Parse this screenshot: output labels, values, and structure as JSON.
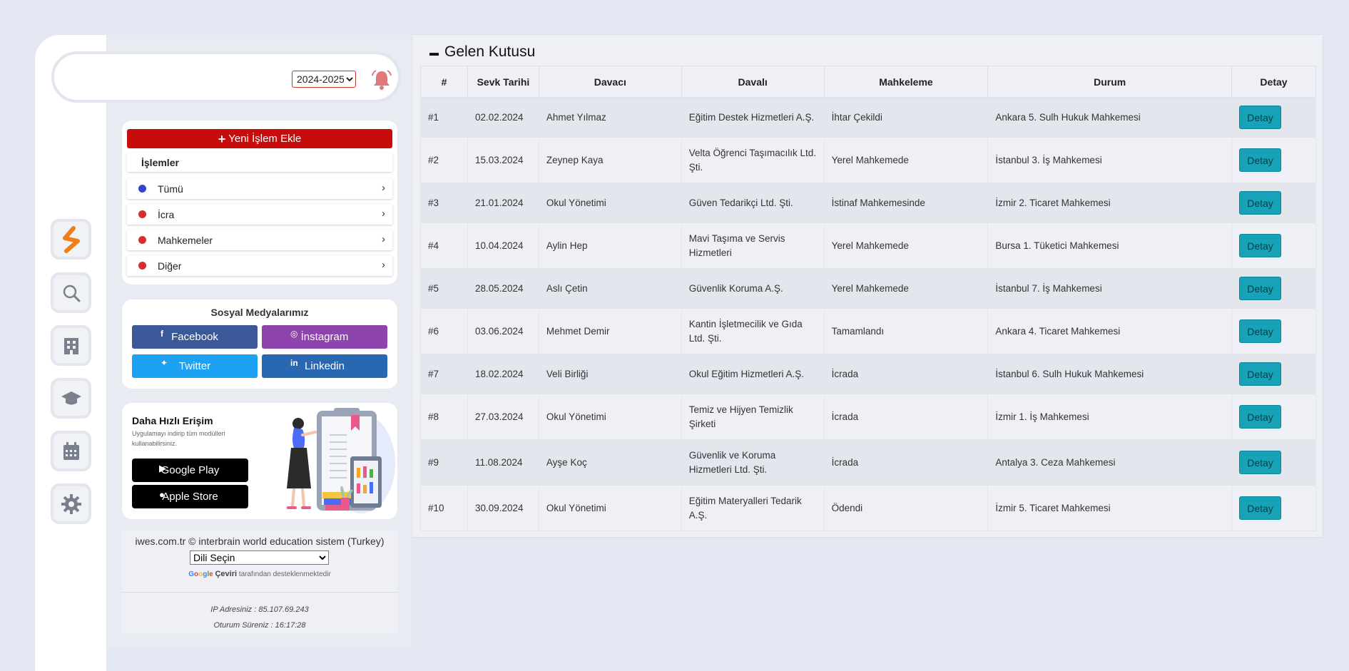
{
  "topbar": {
    "year_select": "2024-2025"
  },
  "rail": {
    "items": [
      {
        "name": "logo-icon"
      },
      {
        "name": "search-icon"
      },
      {
        "name": "building-icon"
      },
      {
        "name": "graduation-cap-icon"
      },
      {
        "name": "calendar-icon"
      },
      {
        "name": "gear-icon"
      }
    ]
  },
  "operations": {
    "new_button": "Yeni İşlem Ekle",
    "heading": "İşlemler",
    "items": [
      {
        "label": "Tümü",
        "dot_color": "#3344cc"
      },
      {
        "label": "İcra",
        "dot_color": "#d32f2f"
      },
      {
        "label": "Mahkemeler",
        "dot_color": "#d32f2f"
      },
      {
        "label": "Diğer",
        "dot_color": "#d32f2f"
      }
    ]
  },
  "social": {
    "title": "Sosyal Medyalarımız",
    "buttons": [
      {
        "label": "Facebook",
        "icon": "f",
        "color": "#3b5998"
      },
      {
        "label": "İnstagram",
        "icon": "◎",
        "color": "#8e44ad"
      },
      {
        "label": "Twitter",
        "icon": "🐦",
        "color": "#1da1f2"
      },
      {
        "label": "Linkedin",
        "icon": "in",
        "color": "#2867b2"
      }
    ]
  },
  "quick_access": {
    "title": "Daha Hızlı Erişim",
    "description": "Uygulamayı indirip tüm modülleri kullanabilirsiniz.",
    "google_play": "Google Play",
    "apple_store": "Apple Store"
  },
  "footer": {
    "copyright": "iwes.com.tr © interbrain world education sistem (Turkey)",
    "language_select": "Dili Seçin",
    "powered_google": "Google",
    "powered_translate": "Çeviri",
    "powered_rest": "tarafından desteklenmektedir",
    "ip": "IP Adresiniz : 85.107.69.243",
    "session": "Oturum Süreniz : 16:17:28"
  },
  "inbox": {
    "title": "Gelen Kutusu",
    "columns": [
      "#",
      "Sevk Tarihi",
      "Davacı",
      "Davalı",
      "Mahkeleme",
      "Durum",
      "Detay"
    ],
    "detail_button": "Detay",
    "rows": [
      {
        "no": "#1",
        "date": "02.02.2024",
        "plaintiff": "Ahmet Yılmaz",
        "defendant": "Eğitim Destek Hizmetleri A.Ş.",
        "court": "İhtar Çekildi",
        "status": "Ankara 5. Sulh Hukuk Mahkemesi"
      },
      {
        "no": "#2",
        "date": "15.03.2024",
        "plaintiff": "Zeynep Kaya",
        "defendant": "Velta Öğrenci Taşımacılık Ltd. Şti.",
        "court": "Yerel Mahkemede",
        "status": "İstanbul 3. İş Mahkemesi"
      },
      {
        "no": "#3",
        "date": "21.01.2024",
        "plaintiff": "Okul Yönetimi",
        "defendant": "Güven Tedarikçi Ltd. Şti.",
        "court": "İstinaf Mahkemesinde",
        "status": "İzmir 2. Ticaret Mahkemesi"
      },
      {
        "no": "#4",
        "date": "10.04.2024",
        "plaintiff": "Aylin Hep",
        "defendant": "Mavi Taşıma ve Servis Hizmetleri",
        "court": "Yerel Mahkemede",
        "status": "Bursa 1. Tüketici Mahkemesi"
      },
      {
        "no": "#5",
        "date": "28.05.2024",
        "plaintiff": "Aslı Çetin",
        "defendant": "Güvenlik Koruma A.Ş.",
        "court": "Yerel Mahkemede",
        "status": "İstanbul 7. İş Mahkemesi"
      },
      {
        "no": "#6",
        "date": "03.06.2024",
        "plaintiff": "Mehmet Demir",
        "defendant": "Kantin İşletmecilik ve Gıda Ltd. Şti.",
        "court": "Tamamlandı",
        "status": "Ankara 4. Ticaret Mahkemesi"
      },
      {
        "no": "#7",
        "date": "18.02.2024",
        "plaintiff": "Veli Birliği",
        "defendant": "Okul Eğitim Hizmetleri A.Ş.",
        "court": "İcrada",
        "status": "İstanbul 6. Sulh Hukuk Mahkemesi"
      },
      {
        "no": "#8",
        "date": "27.03.2024",
        "plaintiff": "Okul Yönetimi",
        "defendant": "Temiz ve Hijyen Temizlik Şirketi",
        "court": "İcrada",
        "status": "İzmir 1. İş Mahkemesi"
      },
      {
        "no": "#9",
        "date": "11.08.2024",
        "plaintiff": "Ayşe Koç",
        "defendant": "Güvenlik ve Koruma Hizmetleri Ltd. Şti.",
        "court": "İcrada",
        "status": "Antalya 3. Ceza Mahkemesi"
      },
      {
        "no": "#10",
        "date": "30.09.2024",
        "plaintiff": "Okul Yönetimi",
        "defendant": "Eğitim Materyalleri Tedarik A.Ş.",
        "court": "Ödendi",
        "status": "İzmir 5. Ticaret Mahkemesi"
      }
    ]
  }
}
